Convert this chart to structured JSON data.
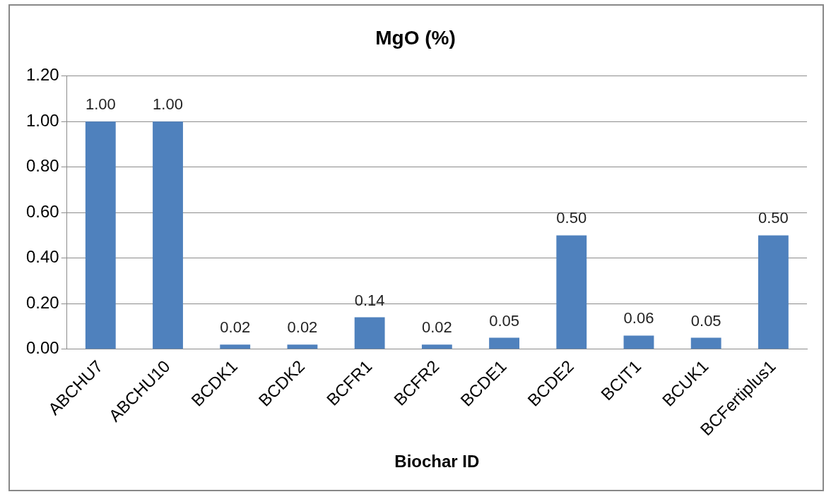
{
  "chart_data": {
    "type": "bar",
    "title": "MgO (%)",
    "xlabel": "Biochar ID",
    "categories": [
      "ABCHU7",
      "ABCHU10",
      "BCDK1",
      "BCDK2",
      "BCFR1",
      "BCFR2",
      "BCDE1",
      "BCDE2",
      "BCIT1",
      "BCUK1",
      "BCFertiplus1"
    ],
    "values": [
      1.0,
      1.0,
      0.02,
      0.02,
      0.14,
      0.02,
      0.05,
      0.5,
      0.06,
      0.05,
      0.5
    ],
    "value_labels": [
      "1.00",
      "1.00",
      "0.02",
      "0.02",
      "0.14",
      "0.02",
      "0.05",
      "0.50",
      "0.06",
      "0.05",
      "0.50"
    ],
    "color": "#4f81bd",
    "ylim": [
      0,
      1.2
    ],
    "yticks": [
      {
        "value": 0,
        "label": "0.00"
      },
      {
        "value": 0.2,
        "label": "0.20"
      },
      {
        "value": 0.4,
        "label": "0.40"
      },
      {
        "value": 0.6,
        "label": "0.60"
      },
      {
        "value": 0.8,
        "label": "0.80"
      },
      {
        "value": 1.0,
        "label": "1.00"
      },
      {
        "value": 1.2,
        "label": "1.20"
      }
    ],
    "grid": "y",
    "legend": false
  }
}
